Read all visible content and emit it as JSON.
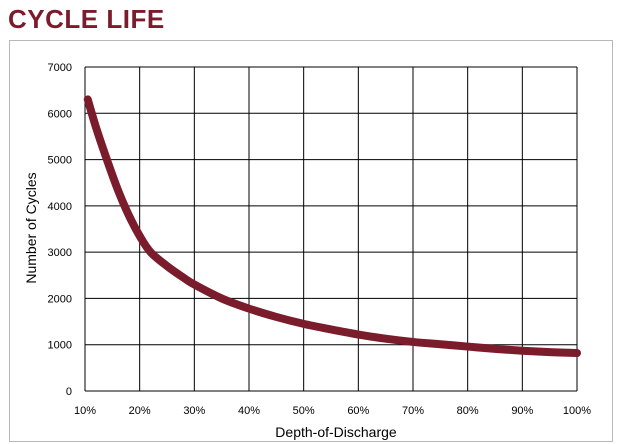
{
  "title": "CYCLE LIFE",
  "colors": {
    "title": "#7a1c2c",
    "curve": "#7a1c2c",
    "grid": "#000000",
    "frame": "#b8b8b8"
  },
  "chart_data": {
    "type": "line",
    "title": "",
    "xlabel": "Depth-of-Discharge",
    "ylabel": "Number of Cycles",
    "xlim": [
      10,
      100
    ],
    "ylim": [
      0,
      7000
    ],
    "grid": true,
    "x_ticks": [
      "10%",
      "20%",
      "30%",
      "40%",
      "50%",
      "60%",
      "70%",
      "80%",
      "90%",
      "100%"
    ],
    "y_ticks": [
      "0",
      "1000",
      "2000",
      "3000",
      "4000",
      "5000",
      "6000",
      "7000"
    ],
    "series": [
      {
        "x": [
          10.5,
          12,
          14,
          16,
          18,
          20,
          22,
          25,
          28,
          30,
          35,
          40,
          45,
          50,
          55,
          60,
          65,
          70,
          75,
          80,
          85,
          90,
          95,
          100
        ],
        "y": [
          6300,
          5700,
          5000,
          4350,
          3800,
          3350,
          3000,
          2700,
          2450,
          2300,
          2000,
          1780,
          1600,
          1450,
          1330,
          1220,
          1130,
          1060,
          1010,
          960,
          910,
          870,
          840,
          820
        ]
      }
    ]
  }
}
